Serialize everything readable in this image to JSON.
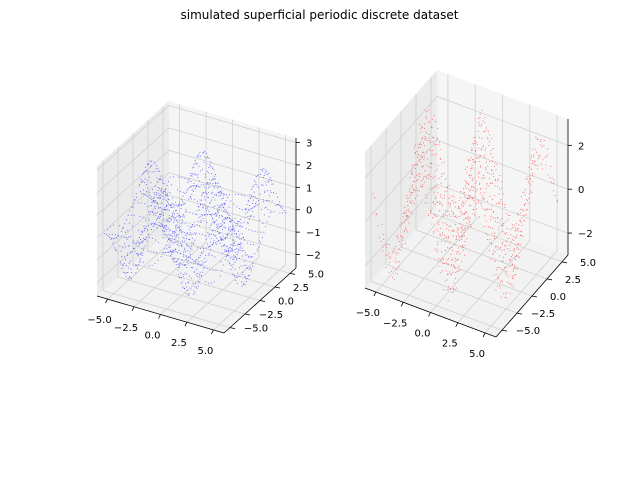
{
  "figure": {
    "title": "simulated superficial periodic discrete dataset"
  },
  "chart_data": [
    {
      "type": "scatter",
      "subtype": "3d-scatter",
      "color": "#0000ff",
      "x_ticks": [
        "−5.0",
        "−2.5",
        "0.0",
        "2.5",
        "5.0"
      ],
      "y_ticks": [
        "−5.0",
        "−2.5",
        "0.0",
        "2.5",
        "5.0"
      ],
      "z_ticks": [
        "−2",
        "−1",
        "0",
        "1",
        "2",
        "3"
      ],
      "xlim": [
        -6,
        6
      ],
      "ylim": [
        -6,
        6
      ],
      "zlim": [
        -2.6,
        3.2
      ],
      "grid": true,
      "pattern": "z = 2·sin(x)·cos(y) sampled on a dense grid, x,y in [-6,6]"
    },
    {
      "type": "scatter",
      "subtype": "3d-scatter",
      "color": "#ff0000",
      "x_ticks": [
        "−5.0",
        "−2.5",
        "0.0",
        "2.5",
        "5.0"
      ],
      "y_ticks": [
        "−5.0",
        "−2.5",
        "0.0",
        "2.5",
        "5.0"
      ],
      "z_ticks": [
        "−2",
        "0",
        "2"
      ],
      "xlim": [
        -6,
        6
      ],
      "ylim": [
        -6,
        6
      ],
      "zlim": [
        -3,
        3.2
      ],
      "grid": true,
      "pattern": "z = 2·sin(x+y) with noise, x,y in [-6,6]"
    }
  ]
}
